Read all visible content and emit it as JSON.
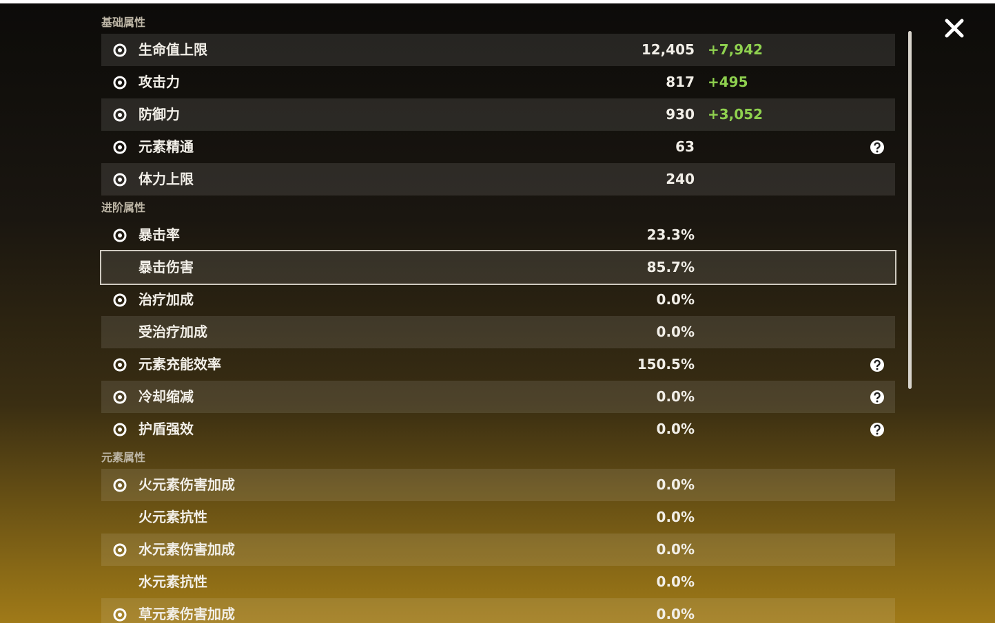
{
  "sections": [
    {
      "title": "基础属性",
      "rows": [
        {
          "label": "生命值上限",
          "value": "12,405",
          "bonus": "+7,942",
          "icon": true
        },
        {
          "label": "攻击力",
          "value": "817",
          "bonus": "+495",
          "icon": true
        },
        {
          "label": "防御力",
          "value": "930",
          "bonus": "+3,052",
          "icon": true
        },
        {
          "label": "元素精通",
          "value": "63",
          "icon": true,
          "help": true
        },
        {
          "label": "体力上限",
          "value": "240",
          "icon": true
        }
      ]
    },
    {
      "title": "进阶属性",
      "rows": [
        {
          "label": "暴击率",
          "value": "23.3%",
          "icon": true
        },
        {
          "label": "暴击伤害",
          "value": "85.7%",
          "icon": false,
          "selected": true
        },
        {
          "label": "治疗加成",
          "value": "0.0%",
          "icon": true
        },
        {
          "label": "受治疗加成",
          "value": "0.0%",
          "icon": false
        },
        {
          "label": "元素充能效率",
          "value": "150.5%",
          "icon": true,
          "help": true
        },
        {
          "label": "冷却缩减",
          "value": "0.0%",
          "icon": true,
          "help": true
        },
        {
          "label": "护盾强效",
          "value": "0.0%",
          "icon": true,
          "help": true
        }
      ]
    },
    {
      "title": "元素属性",
      "rows": [
        {
          "label": "火元素伤害加成",
          "value": "0.0%",
          "icon": true
        },
        {
          "label": "火元素抗性",
          "value": "0.0%",
          "icon": false
        },
        {
          "label": "水元素伤害加成",
          "value": "0.0%",
          "icon": true
        },
        {
          "label": "水元素抗性",
          "value": "0.0%",
          "icon": false
        },
        {
          "label": "草元素伤害加成",
          "value": "0.0%",
          "icon": true
        }
      ]
    }
  ]
}
